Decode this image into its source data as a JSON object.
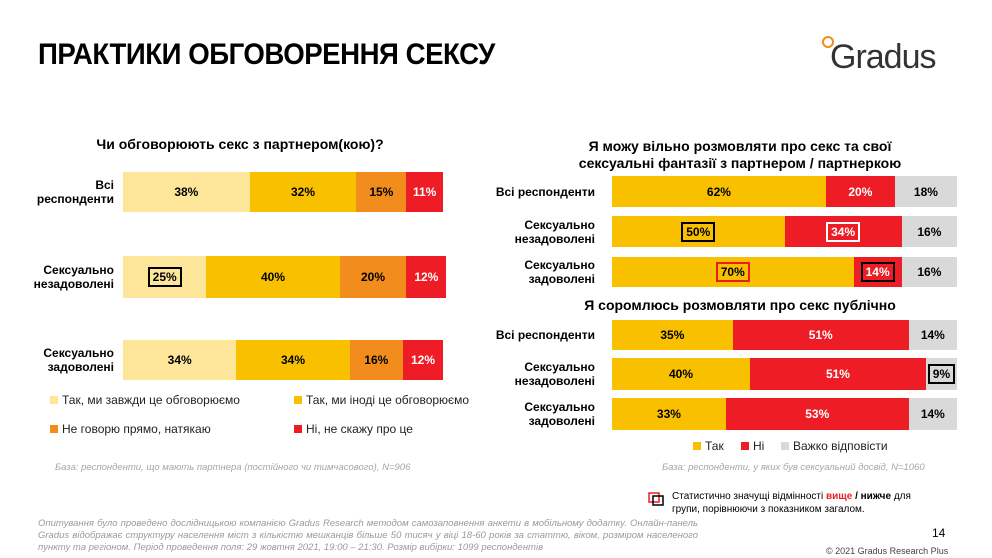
{
  "title": "ПРАКТИКИ ОБГОВОРЕННЯ СЕКСУ",
  "logo": "Gradus",
  "chart_data": [
    {
      "type": "stacked-bar",
      "title": "Чи обговорюють секс з партнером(кою)?",
      "categories": [
        "Всі респонденти",
        "Сексуально незадоволені",
        "Сексуально задоволені"
      ],
      "xlim": [
        0,
        102
      ],
      "series": [
        {
          "name": "Так, ми завжди це обговорюємо",
          "color": "#fde59a",
          "values": [
            38,
            25,
            34
          ],
          "value_labels": [
            "38%",
            "25%",
            "34%"
          ],
          "highlight": [
            null,
            "lower",
            null
          ]
        },
        {
          "name": "Так, ми іноді це обговорюємо",
          "color": "#f9c000",
          "values": [
            32,
            40,
            34
          ],
          "value_labels": [
            "32%",
            "40%",
            "34%"
          ],
          "highlight": [
            null,
            null,
            null
          ]
        },
        {
          "name": "Не говорю прямо, натякаю",
          "color": "#f28c1c",
          "values": [
            15,
            20,
            16
          ],
          "value_labels": [
            "15%",
            "20%",
            "16%"
          ],
          "highlight": [
            null,
            null,
            null
          ]
        },
        {
          "name": "Ні, не скажу про це",
          "color": "#ee1c25",
          "values": [
            11,
            12,
            12
          ],
          "value_labels": [
            "11%",
            "12%",
            "12%"
          ],
          "highlight": [
            null,
            null,
            null
          ]
        }
      ],
      "legend": true,
      "note": "База: респонденти, що мають партнера (постійного чи тимчасового), N=906"
    },
    {
      "type": "stacked-bar",
      "title": "Я можу вільно розмовляти про секс та свої сексуальні фантазії з партнером / партнеркою",
      "categories": [
        "Всі респонденти",
        "Сексуально незадоволені",
        "Сексуально задоволені"
      ],
      "xlim": [
        0,
        100
      ],
      "series": [
        {
          "name": "Так",
          "color": "#f9c000",
          "values": [
            62,
            50,
            70
          ],
          "value_labels": [
            "62%",
            "50%",
            "70%"
          ],
          "highlight": [
            null,
            "lower",
            "higher"
          ]
        },
        {
          "name": "Ні",
          "color": "#ee1c25",
          "values": [
            20,
            34,
            14
          ],
          "value_labels": [
            "20%",
            "34%",
            "14%"
          ],
          "highlight": [
            null,
            "higher",
            "lower"
          ]
        },
        {
          "name": "Важко відповісти",
          "color": "#d9d9d9",
          "values": [
            18,
            16,
            16
          ],
          "value_labels": [
            "18%",
            "16%",
            "16%"
          ],
          "highlight": [
            null,
            null,
            null
          ]
        }
      ],
      "legend": false
    },
    {
      "type": "stacked-bar",
      "title": "Я соромлюсь розмовляти про секс публічно",
      "categories": [
        "Всі респонденти",
        "Сексуально незадоволені",
        "Сексуально задоволені"
      ],
      "xlim": [
        0,
        100
      ],
      "series": [
        {
          "name": "Так",
          "color": "#f9c000",
          "values": [
            35,
            40,
            33
          ],
          "value_labels": [
            "35%",
            "40%",
            "33%"
          ],
          "highlight": [
            null,
            null,
            null
          ]
        },
        {
          "name": "Ні",
          "color": "#ee1c25",
          "values": [
            51,
            51,
            53
          ],
          "value_labels": [
            "51%",
            "51%",
            "53%"
          ],
          "highlight": [
            null,
            null,
            null
          ]
        },
        {
          "name": "Важко відповісти",
          "color": "#d9d9d9",
          "values": [
            14,
            9,
            14
          ],
          "value_labels": [
            "14%",
            "9%",
            "14%"
          ],
          "highlight": [
            null,
            "lower",
            null
          ]
        }
      ],
      "legend": true,
      "note": "База: респонденти, у яких був сексуальний досвід, N=1060"
    }
  ],
  "significance_note": {
    "text": "Статистично значущі відмінності",
    "higher": "вище",
    "separator": "/",
    "lower": "нижче",
    "text2": "для групи, порівнюючи з показником загалом."
  },
  "methodology": "Опитування було проведено дослідницькою компанією Gradus Research методом самозаповнення анкети в мобільному додатку. Онлайн-панель Gradus відображає структуру населення міст з кількістю мешканців більше 50 тисяч у віці 18-60 років за статтю, віком, розміром населеного пункту та регіоном. Період проведення поля: 29 жовтня 2021, 19:00 – 21:30. Розмір вибірки: 1099 респондентів",
  "page_number": "14",
  "copyright": "© 2021 Gradus Research Plus"
}
